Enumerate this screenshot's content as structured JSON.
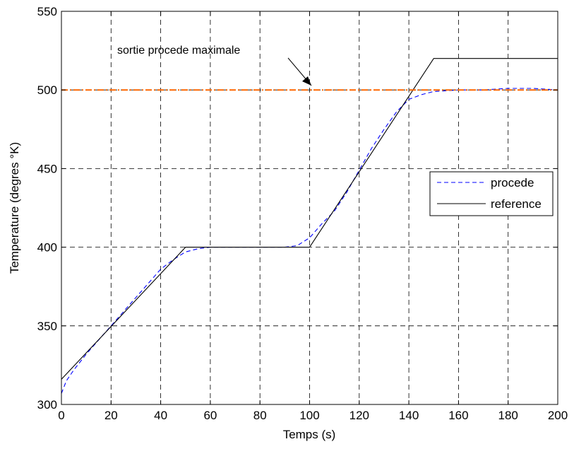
{
  "chart_data": {
    "type": "line",
    "title": "",
    "xlabel": "Temps (s)",
    "ylabel": "Temperature (degres °K)",
    "xlim": [
      0,
      200
    ],
    "ylim": [
      300,
      550
    ],
    "xticks": [
      0,
      20,
      40,
      60,
      80,
      100,
      120,
      140,
      160,
      180,
      200
    ],
    "yticks": [
      300,
      350,
      400,
      450,
      500,
      550
    ],
    "grid": true,
    "legend_position": "right",
    "series": [
      {
        "name": "procede",
        "color": "#0000ff",
        "style": "dashed",
        "x": [
          0,
          2,
          5,
          10,
          15,
          20,
          25,
          30,
          35,
          40,
          45,
          48,
          50,
          55,
          60,
          70,
          80,
          90,
          95,
          100,
          105,
          110,
          115,
          120,
          125,
          130,
          135,
          140,
          145,
          150,
          160,
          170,
          180,
          190,
          200
        ],
        "y": [
          307,
          315,
          322,
          332,
          341,
          350,
          359,
          368,
          377,
          386,
          392,
          395,
          397,
          399,
          400,
          400,
          400,
          400,
          401,
          406,
          415,
          423,
          435,
          449,
          463,
          475,
          486,
          494,
          497,
          499,
          500,
          500,
          501,
          501,
          500
        ]
      },
      {
        "name": "reference",
        "color": "#000000",
        "style": "solid",
        "x": [
          0,
          50,
          100,
          150,
          200
        ],
        "y": [
          316,
          400,
          400,
          520,
          520
        ]
      },
      {
        "name": "",
        "color": "#ff6600",
        "style": "dashdot",
        "x": [
          0,
          200
        ],
        "y": [
          500,
          500
        ]
      }
    ],
    "annotations": [
      {
        "text": "sortie procede maximale",
        "arrow_to": [
          100,
          500
        ]
      }
    ]
  }
}
